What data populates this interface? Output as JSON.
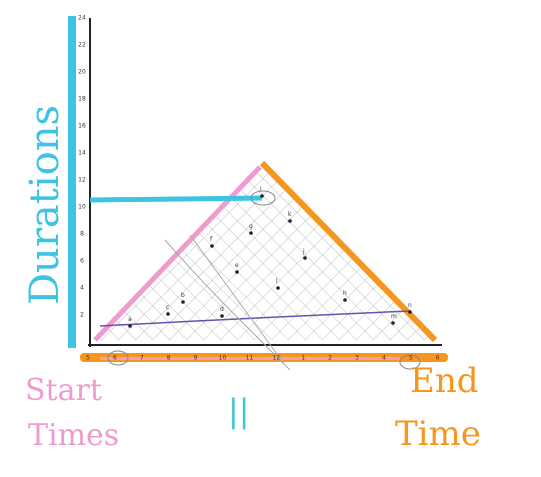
{
  "axis_label_y": "Durations",
  "label_start": [
    "Start",
    "Times"
  ],
  "label_equal": "||",
  "label_end": [
    "End",
    "Time"
  ],
  "y_axis_labels": [
    "2",
    "4",
    "6",
    "8",
    "10",
    "12",
    "14",
    "16",
    "18",
    "20",
    "22",
    "24"
  ],
  "x_axis_labels": [
    "5",
    "6",
    "7",
    "8",
    "9",
    "10",
    "11",
    "12",
    "1",
    "2",
    "3",
    "4",
    "5",
    "6"
  ],
  "points": [
    "a",
    "b",
    "c",
    "d",
    "e",
    "f",
    "g",
    "h",
    "i",
    "j",
    "k",
    "l",
    "m",
    "n"
  ]
}
